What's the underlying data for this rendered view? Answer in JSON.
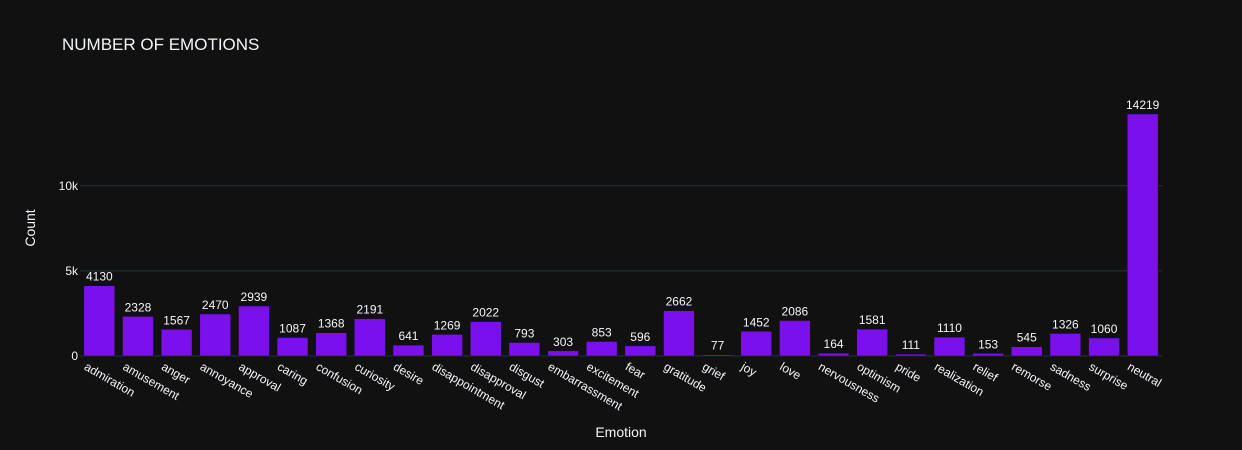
{
  "chart_data": {
    "type": "bar",
    "title": "NUMBER OF EMOTIONS",
    "xlabel": "Emotion",
    "ylabel": "Count",
    "categories": [
      "admiration",
      "amusement",
      "anger",
      "annoyance",
      "approval",
      "caring",
      "confusion",
      "curiosity",
      "desire",
      "disappointment",
      "disapproval",
      "disgust",
      "embarrassment",
      "excitement",
      "fear",
      "gratitude",
      "grief",
      "joy",
      "love",
      "nervousness",
      "optimism",
      "pride",
      "realization",
      "relief",
      "remorse",
      "sadness",
      "surprise",
      "neutral"
    ],
    "values": [
      4130,
      2328,
      1567,
      2470,
      2939,
      1087,
      1368,
      2191,
      641,
      1269,
      2022,
      793,
      303,
      853,
      596,
      2662,
      77,
      1452,
      2086,
      164,
      1581,
      111,
      1110,
      153,
      545,
      1326,
      1060,
      14219
    ],
    "yticks": [
      0,
      5000,
      10000
    ],
    "ytick_labels": [
      "0",
      "5k",
      "10k"
    ],
    "ylim": [
      0,
      14219
    ],
    "grid": true,
    "bar_color": "#7a10eb",
    "background_color": "#111111",
    "text_color": "#f2f5fa"
  }
}
